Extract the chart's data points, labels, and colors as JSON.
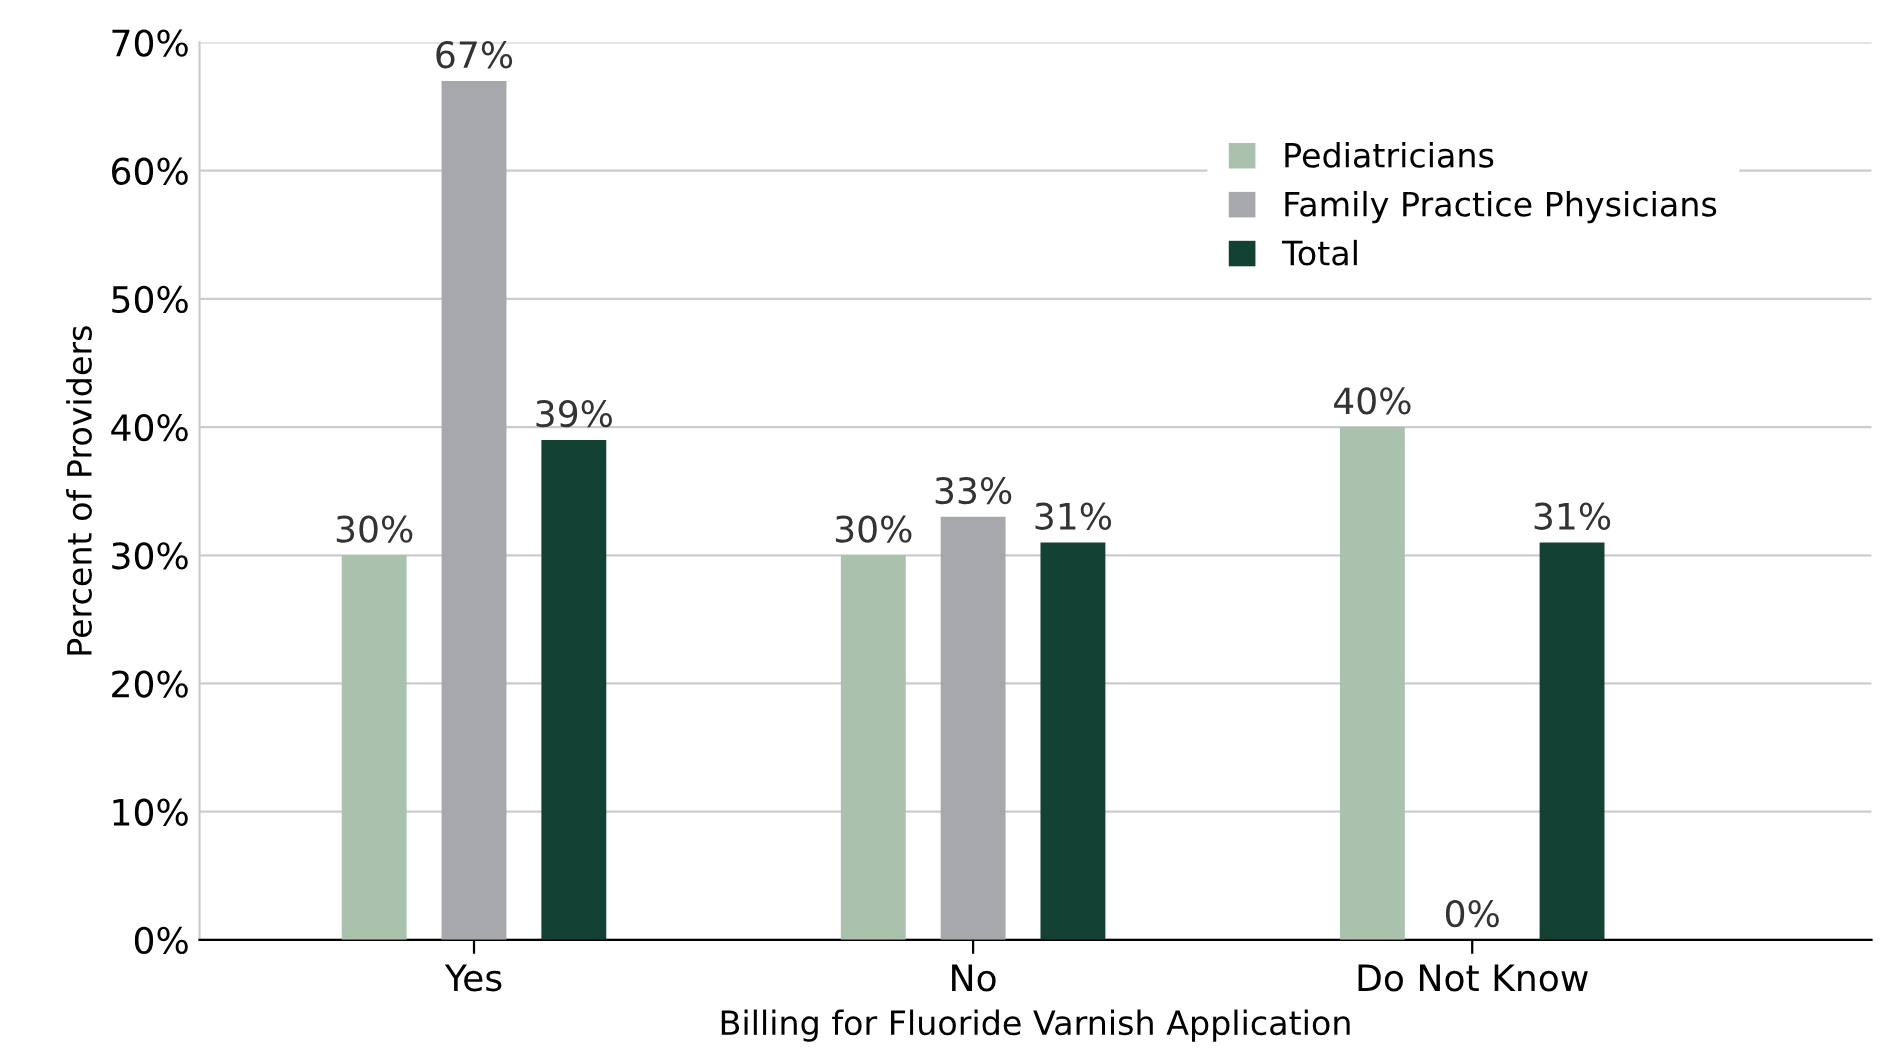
{
  "chart_data": {
    "type": "bar",
    "xlabel": "Billing for Fluoride Varnish Application",
    "ylabel": "Percent of Providers",
    "categories": [
      "Yes",
      "No",
      "Do Not Know"
    ],
    "series": [
      {
        "name": "Pediatricians",
        "color": "#a9c1ad",
        "values": [
          30,
          30,
          40
        ],
        "value_labels": [
          "30%",
          "30%",
          "40%"
        ]
      },
      {
        "name": "Family Practice Physicians",
        "color": "#a7a8ab",
        "values": [
          67,
          33,
          0
        ],
        "value_labels": [
          "67%",
          "33%",
          "0%"
        ]
      },
      {
        "name": "Total",
        "color": "#134234",
        "values": [
          39,
          31,
          31
        ],
        "value_labels": [
          "39%",
          "31%",
          "31%"
        ]
      }
    ],
    "ylim": [
      0,
      70
    ],
    "yticks": [
      {
        "value": 0,
        "label": "0%"
      },
      {
        "value": 10,
        "label": "10%"
      },
      {
        "value": 20,
        "label": "20%"
      },
      {
        "value": 30,
        "label": "30%"
      },
      {
        "value": 40,
        "label": "40%"
      },
      {
        "value": 50,
        "label": "50%"
      },
      {
        "value": 60,
        "label": "60%"
      },
      {
        "value": 70,
        "label": "70%"
      }
    ],
    "grid": "y",
    "legend": "top right"
  }
}
